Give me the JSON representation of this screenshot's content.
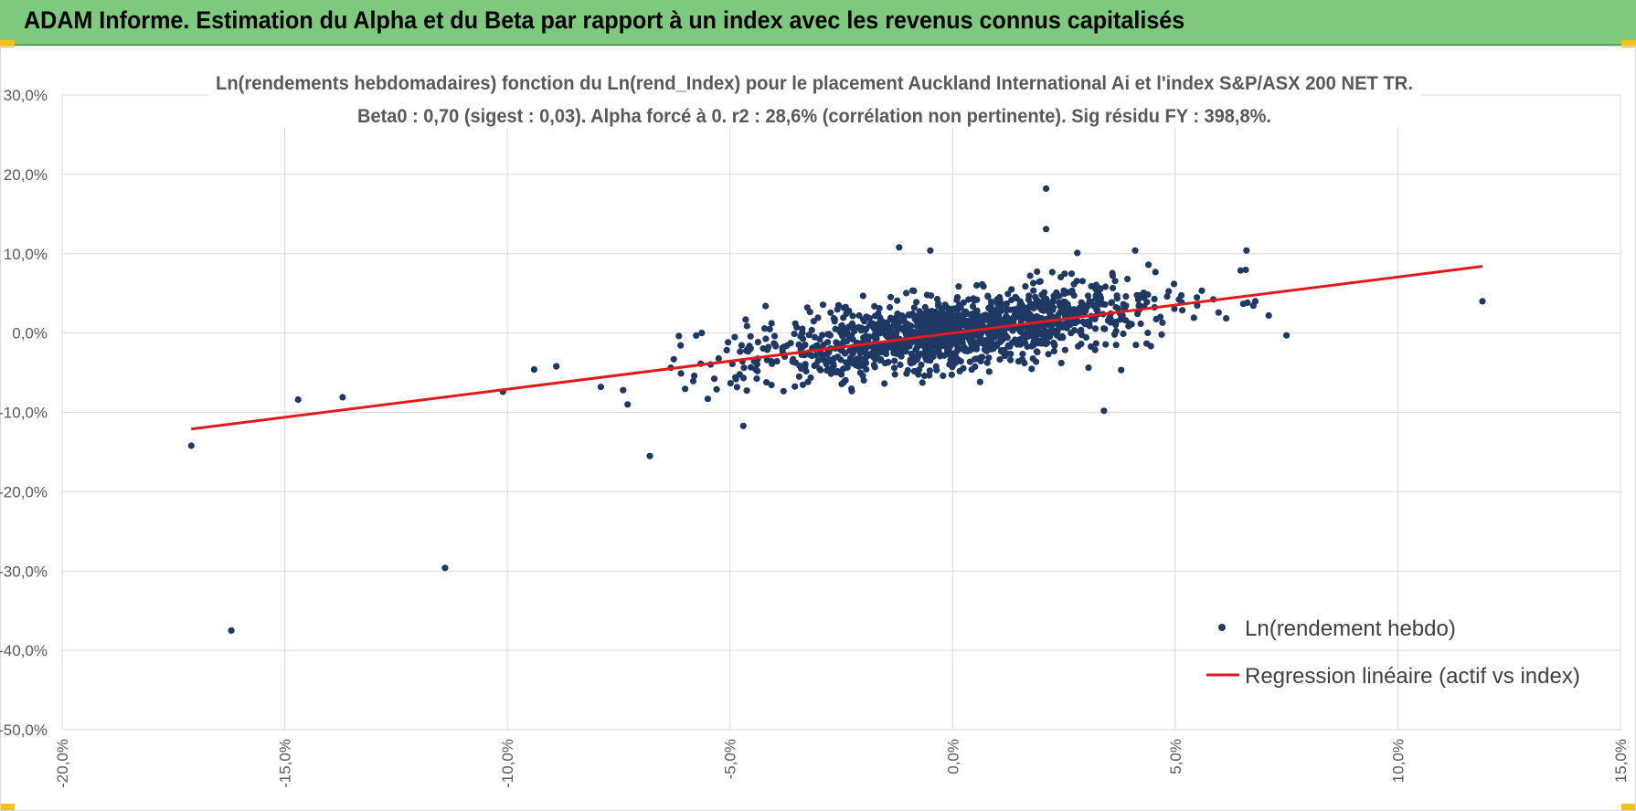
{
  "header": {
    "title": "ADAM Informe. Estimation du Alpha et du Beta par rapport à un index avec les revenus connus capitalisés"
  },
  "colors": {
    "banner": "#7dc97d",
    "points": "#1f3864",
    "regression": "#e31a1c",
    "grid": "#d9d9d9",
    "accent_corner": "#f2c21b"
  },
  "chart_data": {
    "type": "scatter",
    "title_line1": "Ln(rendements hebdomadaires) fonction du Ln(rend_Index) pour le placement Auckland International Ai et l'index S&P/ASX 200 NET TR.",
    "title_line2": "Beta0 : 0,70 (sigest : 0,03).  Alpha forcé à 0. r2 : 28,6% (corrélation non pertinente). Sig résidu FY : 398,8%.",
    "xlim": [
      -0.2,
      0.15
    ],
    "ylim": [
      -0.5,
      0.3
    ],
    "x_ticks": [
      -0.2,
      -0.15,
      -0.1,
      -0.05,
      0.0,
      0.05,
      0.1,
      0.15
    ],
    "x_tick_labels": [
      "-20,0%",
      "-15,0%",
      "-10,0%",
      "-5,0%",
      "0,0%",
      "5,0%",
      "10,0%",
      "15,0%"
    ],
    "y_ticks": [
      0.3,
      0.2,
      0.1,
      0.0,
      -0.1,
      -0.2,
      -0.3,
      -0.4,
      -0.5
    ],
    "y_tick_labels": [
      "30,0%",
      "20,0%",
      "10,0%",
      "0,0%",
      "-10,0%",
      "-20,0%",
      "-30,0%",
      "-40,0%",
      "-50,0%"
    ],
    "grid": true,
    "legend_position": "bottom-right",
    "series": [
      {
        "name": "Ln(rendement hebdo)",
        "kind": "scatter",
        "outliers": [
          {
            "x": -0.171,
            "y": -0.142
          },
          {
            "x": -0.162,
            "y": -0.375
          },
          {
            "x": -0.114,
            "y": -0.296
          },
          {
            "x": -0.147,
            "y": -0.084
          },
          {
            "x": -0.137,
            "y": -0.081
          },
          {
            "x": -0.101,
            "y": -0.074
          },
          {
            "x": -0.094,
            "y": -0.046
          },
          {
            "x": -0.089,
            "y": -0.042
          },
          {
            "x": -0.079,
            "y": -0.068
          },
          {
            "x": -0.074,
            "y": -0.072
          },
          {
            "x": -0.073,
            "y": -0.09
          },
          {
            "x": -0.068,
            "y": -0.155
          },
          {
            "x": -0.047,
            "y": -0.117
          },
          {
            "x": -0.042,
            "y": 0.034
          },
          {
            "x": -0.012,
            "y": 0.108
          },
          {
            "x": -0.005,
            "y": 0.104
          },
          {
            "x": 0.021,
            "y": 0.182
          },
          {
            "x": 0.021,
            "y": 0.131
          },
          {
            "x": 0.034,
            "y": -0.098
          },
          {
            "x": 0.028,
            "y": 0.101
          },
          {
            "x": 0.041,
            "y": 0.104
          },
          {
            "x": 0.044,
            "y": 0.086
          },
          {
            "x": 0.066,
            "y": 0.104
          },
          {
            "x": 0.068,
            "y": 0.04
          },
          {
            "x": 0.071,
            "y": 0.022
          },
          {
            "x": 0.075,
            "y": -0.003
          },
          {
            "x": 0.119,
            "y": 0.04
          },
          {
            "x": -0.061,
            "y": -0.051
          },
          {
            "x": -0.055,
            "y": -0.083
          },
          {
            "x": -0.053,
            "y": -0.071
          }
        ],
        "cluster": {
          "n_points": 1400,
          "x_mean": 0.0,
          "x_sd": 0.022,
          "beta": 0.7,
          "y_noise_sd": 0.022
        }
      },
      {
        "name": "Regression linéaire (actif vs index)",
        "kind": "line",
        "points": [
          {
            "x": -0.171,
            "y": -0.121
          },
          {
            "x": 0.119,
            "y": 0.084
          }
        ]
      }
    ]
  }
}
